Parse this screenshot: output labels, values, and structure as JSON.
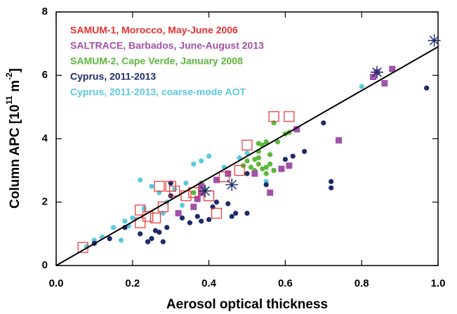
{
  "chart_data": {
    "type": "scatter",
    "xlabel": "Aerosol optical thickness",
    "ylabel_parts": [
      "Column APC [10",
      "11",
      " m",
      "-2",
      "]"
    ],
    "xlim": [
      0,
      1
    ],
    "ylim": [
      0,
      8
    ],
    "xticks": [
      {
        "value": 0,
        "label": "0.0"
      },
      0.2,
      0.4,
      0.6,
      0.8,
      {
        "value": 1,
        "label": "1.0"
      }
    ],
    "yticks": [
      0,
      2,
      4,
      6,
      8
    ],
    "legend": "upper left",
    "series": [
      {
        "name": "Cyprus, 2011-2013, coarse-mode AOT",
        "color": "#5bc8e0",
        "marker": "circle",
        "x": [
          0.08,
          0.1,
          0.12,
          0.15,
          0.17,
          0.18,
          0.2,
          0.22,
          0.25,
          0.27,
          0.29,
          0.33,
          0.34,
          0.36,
          0.38,
          0.4,
          0.44,
          0.48,
          0.5,
          0.55,
          0.8,
          0.19,
          0.23,
          0.31,
          0.28
        ],
        "values": [
          0.6,
          0.8,
          0.9,
          1.2,
          0.8,
          1.4,
          1.5,
          2.7,
          2.5,
          2.3,
          2.0,
          1.9,
          2.6,
          3.2,
          3.3,
          3.45,
          3.1,
          3.4,
          3.55,
          2.65,
          5.65,
          1.25,
          1.8,
          2.4,
          1.65
        ]
      },
      {
        "name": "Cyprus, 2011-2013",
        "color": "#1c2b6b",
        "marker": "circle",
        "x": [
          0.1,
          0.14,
          0.18,
          0.22,
          0.25,
          0.27,
          0.28,
          0.29,
          0.3,
          0.33,
          0.35,
          0.37,
          0.38,
          0.4,
          0.41,
          0.42,
          0.45,
          0.46,
          0.47,
          0.5,
          0.5,
          0.55,
          0.57,
          0.6,
          0.65,
          0.7,
          0.72,
          0.72,
          0.97,
          0.24,
          0.3,
          0.26,
          0.62
        ],
        "values": [
          0.7,
          0.85,
          1.2,
          1.0,
          0.85,
          1.05,
          0.75,
          1.2,
          2.2,
          1.5,
          1.35,
          1.55,
          1.4,
          1.45,
          1.85,
          2.0,
          1.95,
          1.55,
          1.65,
          1.65,
          2.9,
          2.55,
          3.0,
          3.35,
          3.6,
          4.5,
          2.45,
          2.65,
          5.6,
          0.75,
          2.6,
          1.1,
          3.45
        ]
      },
      {
        "name": "SAMUM-2, Cape Verde, January 2008",
        "color": "#5cb83c",
        "marker": "circle",
        "x": [
          0.49,
          0.5,
          0.51,
          0.52,
          0.53,
          0.54,
          0.55,
          0.56,
          0.57,
          0.53,
          0.54,
          0.55,
          0.57,
          0.61,
          0.6,
          0.58,
          0.53,
          0.56,
          0.55,
          0.38,
          0.39,
          0.36,
          0.53,
          0.52
        ],
        "values": [
          3.15,
          3.3,
          3.1,
          3.0,
          3.2,
          3.05,
          3.1,
          3.2,
          3.0,
          3.6,
          3.8,
          3.9,
          4.5,
          4.2,
          4.15,
          3.9,
          3.4,
          3.5,
          2.9,
          2.6,
          2.4,
          2.3,
          3.85,
          3.35
        ]
      },
      {
        "name": "SALTRACE, Barbados, June-August 2013",
        "color": "#a052a8",
        "marker": "square",
        "x": [
          0.32,
          0.36,
          0.37,
          0.38,
          0.42,
          0.45,
          0.52,
          0.56,
          0.59,
          0.61,
          0.63,
          0.74,
          0.83,
          0.86,
          0.88,
          0.84,
          0.38
        ],
        "values": [
          1.65,
          1.85,
          2.1,
          2.3,
          2.7,
          2.9,
          2.9,
          2.3,
          3.05,
          3.15,
          4.3,
          3.95,
          5.95,
          5.75,
          6.2,
          6.1,
          2.5
        ]
      },
      {
        "name": "SAMUM-1, Morocco, May-June 2006",
        "color": "#e8312f",
        "marker": "open-square",
        "x": [
          0.07,
          0.22,
          0.24,
          0.26,
          0.22,
          0.28,
          0.27,
          0.3,
          0.31,
          0.34,
          0.36,
          0.4,
          0.42,
          0.44,
          0.48,
          0.5,
          0.57,
          0.61
        ],
        "values": [
          0.57,
          1.35,
          1.55,
          1.5,
          1.75,
          1.85,
          2.5,
          2.5,
          2.35,
          2.2,
          2.3,
          2.2,
          1.65,
          2.8,
          3.0,
          3.8,
          4.7,
          4.7
        ]
      },
      {
        "color": "#1c2b6b",
        "marker": "asterisk",
        "x": [
          0.46,
          0.84,
          0.99,
          0.39
        ],
        "values": [
          2.55,
          6.1,
          7.1,
          2.35
        ]
      }
    ],
    "fit_line": {
      "color": "#000000",
      "x": [
        0,
        1
      ],
      "values": [
        0,
        6.9
      ]
    }
  }
}
